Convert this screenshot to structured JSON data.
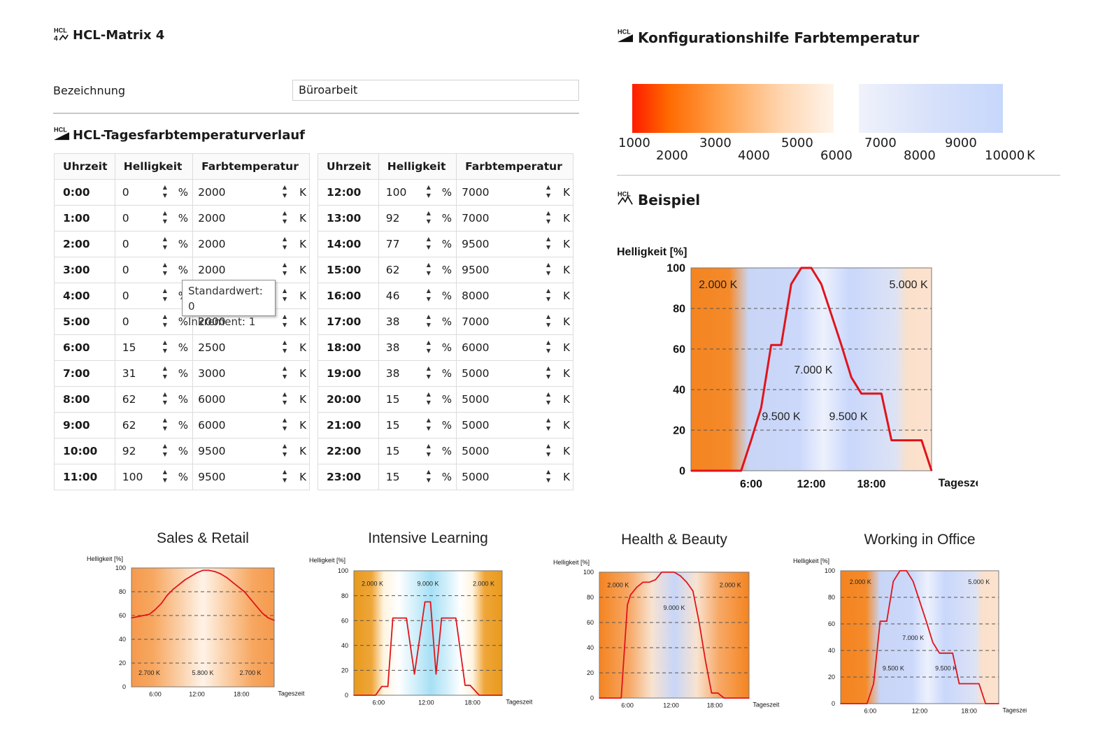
{
  "header": {
    "app_title": "HCL-Matrix 4",
    "logo_text": "HCL",
    "logo_number": "4"
  },
  "form": {
    "label": "Bezeichnung",
    "value": "Büroarbeit"
  },
  "section": {
    "title": "HCL-Tagesfarbtemperaturverlauf",
    "col_time": "Uhrzeit",
    "col_brightness": "Helligkeit",
    "col_temp": "Farbtemperatur",
    "unit_percent": "%",
    "unit_kelvin": "K"
  },
  "rows": [
    {
      "time": "0:00",
      "b": "0",
      "t": "2000"
    },
    {
      "time": "1:00",
      "b": "0",
      "t": "2000"
    },
    {
      "time": "2:00",
      "b": "0",
      "t": "2000"
    },
    {
      "time": "3:00",
      "b": "0",
      "t": "2000"
    },
    {
      "time": "4:00",
      "b": "0",
      "t": ""
    },
    {
      "time": "5:00",
      "b": "0",
      "t": "2000"
    },
    {
      "time": "6:00",
      "b": "15",
      "t": "2500"
    },
    {
      "time": "7:00",
      "b": "31",
      "t": "3000"
    },
    {
      "time": "8:00",
      "b": "62",
      "t": "6000"
    },
    {
      "time": "9:00",
      "b": "62",
      "t": "6000"
    },
    {
      "time": "10:00",
      "b": "92",
      "t": "9500"
    },
    {
      "time": "11:00",
      "b": "100",
      "t": "9500"
    },
    {
      "time": "12:00",
      "b": "100",
      "t": "7000"
    },
    {
      "time": "13:00",
      "b": "92",
      "t": "7000"
    },
    {
      "time": "14:00",
      "b": "77",
      "t": "9500"
    },
    {
      "time": "15:00",
      "b": "62",
      "t": "9500"
    },
    {
      "time": "16:00",
      "b": "46",
      "t": "8000"
    },
    {
      "time": "17:00",
      "b": "38",
      "t": "7000"
    },
    {
      "time": "18:00",
      "b": "38",
      "t": "6000"
    },
    {
      "time": "19:00",
      "b": "38",
      "t": "5000"
    },
    {
      "time": "20:00",
      "b": "15",
      "t": "5000"
    },
    {
      "time": "21:00",
      "b": "15",
      "t": "5000"
    },
    {
      "time": "22:00",
      "b": "15",
      "t": "5000"
    },
    {
      "time": "23:00",
      "b": "15",
      "t": "5000"
    }
  ],
  "tooltip": {
    "line1": "Standardwert: 0",
    "line2": "Inkrement: 1"
  },
  "config": {
    "title": "Konfigurationshilfe Farbtemperatur",
    "ticks_top": [
      "1000",
      "3000",
      "5000",
      "7000",
      "9000"
    ],
    "ticks_bottom": [
      "2000",
      "4000",
      "6000",
      "8000",
      "10000"
    ],
    "unit": "K"
  },
  "example": {
    "title": "Beispiel"
  },
  "colors": {
    "curve": "#e0141b",
    "warm": "#f4821f",
    "cool": "#c9d8fb"
  },
  "chart_data": [
    {
      "type": "line",
      "title": "Beispiel",
      "ylabel": "Helligkeit [%]",
      "xlabel": "Tageszeit",
      "ylim": [
        0,
        100
      ],
      "xlim": [
        0,
        24
      ],
      "y_ticks": [
        "0",
        "20",
        "40",
        "60",
        "80",
        "100"
      ],
      "x_ticks": [
        {
          "v": 6,
          "label": "6:00"
        },
        {
          "v": 12,
          "label": "12:00"
        },
        {
          "v": 18,
          "label": "18:00"
        }
      ],
      "x": [
        0,
        1,
        2,
        3,
        4,
        5,
        6,
        7,
        8,
        9,
        10,
        11,
        12,
        13,
        14,
        15,
        16,
        17,
        18,
        19,
        20,
        21,
        22,
        23,
        24
      ],
      "values": [
        0,
        0,
        0,
        0,
        0,
        0,
        15,
        31,
        62,
        62,
        92,
        100,
        100,
        92,
        77,
        62,
        46,
        38,
        38,
        38,
        15,
        15,
        15,
        15,
        0
      ],
      "annotations": [
        {
          "text": "2.000 K",
          "x": 2.7,
          "y": 90
        },
        {
          "text": "5.000 K",
          "x": 21.7,
          "y": 90
        },
        {
          "text": "7.000 K",
          "x": 12.2,
          "y": 48
        },
        {
          "text": "9.500 K",
          "x": 9,
          "y": 25
        },
        {
          "text": "9.500 K",
          "x": 15.7,
          "y": 25
        }
      ]
    },
    {
      "type": "line",
      "title": "Sales & Retail",
      "ylabel": "Helligkeit [%]",
      "xlabel": "Tageszeit",
      "ylim": [
        0,
        100
      ],
      "xlim": [
        0,
        24
      ],
      "y_ticks": [
        "0",
        "20",
        "40",
        "60",
        "80",
        "100"
      ],
      "x_ticks": [
        {
          "v": 4,
          "label": "6:00"
        },
        {
          "v": 11,
          "label": "12:00"
        },
        {
          "v": 18.5,
          "label": "18:00"
        }
      ],
      "x": [
        0,
        1,
        2,
        3,
        4,
        5,
        6,
        7,
        8,
        9,
        10,
        11,
        12,
        13,
        14,
        15,
        16,
        17,
        18,
        19,
        20,
        21,
        22,
        23,
        24
      ],
      "values": [
        58,
        59,
        60,
        61,
        65,
        70,
        77,
        82,
        86,
        90,
        93,
        96,
        98,
        98,
        97,
        95,
        92,
        88,
        84,
        80,
        74,
        68,
        62,
        58,
        56
      ],
      "annotations": [
        {
          "text": "2.700 K",
          "x": 3,
          "y": 10
        },
        {
          "text": "5.800 K",
          "x": 12,
          "y": 10
        },
        {
          "text": "2.700 K",
          "x": 20,
          "y": 10
        }
      ]
    },
    {
      "type": "line",
      "title": "Intensive Learning",
      "ylabel": "Helligkeit [%]",
      "xlabel": "Tageszeit",
      "ylim": [
        0,
        100
      ],
      "xlim": [
        0,
        24
      ],
      "y_ticks": [
        "0",
        "20",
        "40",
        "60",
        "80",
        "100"
      ],
      "x_ticks": [
        {
          "v": 4,
          "label": "6:00"
        },
        {
          "v": 11.7,
          "label": "12:00"
        },
        {
          "v": 19.2,
          "label": "18:00"
        }
      ],
      "x": [
        0,
        3.5,
        4.5,
        5.5,
        6.3,
        7,
        8.5,
        9.8,
        11.5,
        12.4,
        13.3,
        14.2,
        15.2,
        16.5,
        18,
        18.8,
        20.3,
        21,
        24
      ],
      "values": [
        0,
        0,
        7,
        7,
        62,
        62,
        62,
        17,
        75,
        75,
        17,
        62,
        62,
        62,
        8,
        8,
        0,
        0,
        0
      ],
      "annotations": [
        {
          "text": "2.000 K",
          "x": 3,
          "y": 88
        },
        {
          "text": "9.000 K",
          "x": 12,
          "y": 88
        },
        {
          "text": "2.000 K",
          "x": 21,
          "y": 88
        }
      ]
    },
    {
      "type": "line",
      "title": "Health & Beauty",
      "ylabel": "Helligkeit [%]",
      "xlabel": "Tageszeit",
      "ylim": [
        0,
        100
      ],
      "xlim": [
        0,
        24
      ],
      "y_ticks": [
        "0",
        "20",
        "40",
        "60",
        "80",
        "100"
      ],
      "x_ticks": [
        {
          "v": 4.5,
          "label": "6:00"
        },
        {
          "v": 11.5,
          "label": "12:00"
        },
        {
          "v": 18.5,
          "label": "18:00"
        }
      ],
      "x": [
        0,
        3.5,
        4.5,
        5,
        6,
        7,
        8,
        9,
        10,
        11,
        12,
        13,
        14,
        15,
        16,
        17,
        18,
        19,
        20,
        24
      ],
      "values": [
        0,
        0,
        74,
        82,
        88,
        92,
        92,
        94,
        100,
        100,
        100,
        97,
        92,
        85,
        60,
        30,
        4,
        4,
        0,
        0
      ],
      "annotations": [
        {
          "text": "2.000 K",
          "x": 3,
          "y": 88
        },
        {
          "text": "9.000 K",
          "x": 12,
          "y": 70
        },
        {
          "text": "2.000 K",
          "x": 21,
          "y": 88
        }
      ]
    },
    {
      "type": "line",
      "title": "Working in Office",
      "ylabel": "Helligkeit [%]",
      "xlabel": "Tageszeit",
      "ylim": [
        0,
        100
      ],
      "xlim": [
        0,
        24
      ],
      "y_ticks": [
        "0",
        "20",
        "40",
        "60",
        "80",
        "100"
      ],
      "x_ticks": [
        {
          "v": 4.5,
          "label": "6:00"
        },
        {
          "v": 12,
          "label": "12:00"
        },
        {
          "v": 19.5,
          "label": "18:00"
        }
      ],
      "x": [
        0,
        1,
        2,
        3,
        4,
        5,
        6,
        7,
        8,
        9,
        10,
        11,
        12,
        13,
        14,
        15,
        16,
        17,
        18,
        19,
        20,
        21,
        22,
        23,
        24
      ],
      "values": [
        0,
        0,
        0,
        0,
        0,
        15,
        62,
        62,
        92,
        100,
        100,
        92,
        77,
        62,
        46,
        38,
        38,
        38,
        15,
        15,
        15,
        15,
        0,
        0,
        0
      ],
      "annotations": [
        {
          "text": "2.000 K",
          "x": 3,
          "y": 90
        },
        {
          "text": "5.000 K",
          "x": 21,
          "y": 90
        },
        {
          "text": "7.000 K",
          "x": 11,
          "y": 48
        },
        {
          "text": "9.500 K",
          "x": 8,
          "y": 25
        },
        {
          "text": "9.500 K",
          "x": 16,
          "y": 25
        }
      ]
    }
  ]
}
